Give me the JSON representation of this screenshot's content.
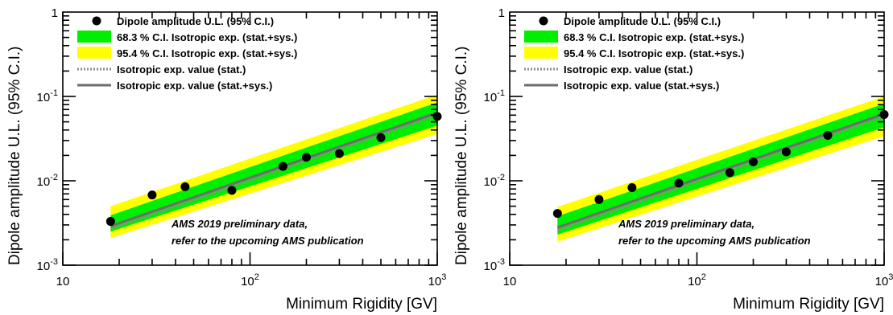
{
  "colors": {
    "band95": "#ffff00",
    "band68": "#00ee00",
    "line": "#6d6d6d",
    "marker": "#000000"
  },
  "chart_data": [
    {
      "type": "line",
      "xscale": "log",
      "yscale": "log",
      "xlim": [
        10,
        1000
      ],
      "ylim": [
        0.001,
        1
      ],
      "xlabel": "Minimum Rigidity [GV]",
      "ylabel": "Dipole amplitude U.L. (95% C.I.)",
      "xticklabels": [
        "10",
        "10^2",
        "10^3"
      ],
      "yticklabels": [
        "10^-3",
        "10^-2",
        "10^-1",
        "1"
      ],
      "legend_position": "top-left",
      "legend": [
        {
          "marker": "dot",
          "label": "Dipole amplitude U.L. (95% C.I.)"
        },
        {
          "marker": "band68",
          "label": "68.3 % C.I. Isotropic exp. (stat.+sys.)"
        },
        {
          "marker": "band95",
          "label": "95.4 % C.I. Isotropic exp. (stat.+sys.)"
        },
        {
          "marker": "dotted-line",
          "label": "Isotropic exp. value (stat.)"
        },
        {
          "marker": "solid-line",
          "label": "Isotropic exp. value (stat.+sys.)"
        }
      ],
      "annotation": [
        "AMS 2019 preliminary data,",
        "refer to the upcoming AMS publication"
      ],
      "upper_limits": {
        "x": [
          18,
          30,
          45,
          80,
          150,
          200,
          300,
          500,
          1000
        ],
        "y": [
          0.0033,
          0.0068,
          0.0085,
          0.0077,
          0.0148,
          0.019,
          0.021,
          0.0325,
          0.058
        ]
      },
      "x_grid": [
        18,
        1000
      ],
      "band95": {
        "lower": [
          0.0021,
          0.036
        ],
        "upper": [
          0.005,
          0.105
        ]
      },
      "band68": {
        "lower": [
          0.0025,
          0.045
        ],
        "upper": [
          0.0039,
          0.085
        ]
      },
      "expected_stat": [
        0.0027,
        0.06
      ],
      "expected_statsys": [
        0.0029,
        0.064
      ]
    },
    {
      "type": "line",
      "xscale": "log",
      "yscale": "log",
      "xlim": [
        10,
        1000
      ],
      "ylim": [
        0.001,
        1
      ],
      "xlabel": "Minimum Rigidity [GV]",
      "ylabel": "Dipole amplitude U.L. (95% C.I.)",
      "xticklabels": [
        "10",
        "10^2",
        "10^3"
      ],
      "yticklabels": [
        "10^-3",
        "10^-2",
        "10^-1",
        "1"
      ],
      "legend_position": "top-left",
      "legend": [
        {
          "marker": "dot",
          "label": "Dipole amplitude U.L. (95% C.I.)"
        },
        {
          "marker": "band68",
          "label": "68.3 % C.I. Isotropic exp. (stat.+sys.)"
        },
        {
          "marker": "band95",
          "label": "95.4 % C.I. Isotropic exp. (stat.+sys.)"
        },
        {
          "marker": "dotted-line",
          "label": "Isotropic exp. value (stat.)"
        },
        {
          "marker": "solid-line",
          "label": "Isotropic exp. value (stat.+sys.)"
        }
      ],
      "annotation": [
        "AMS 2019 preliminary data,",
        "refer to the upcoming AMS publication"
      ],
      "upper_limits": {
        "x": [
          18,
          30,
          45,
          80,
          150,
          200,
          300,
          500,
          1000
        ],
        "y": [
          0.0041,
          0.006,
          0.0083,
          0.0094,
          0.0125,
          0.0168,
          0.022,
          0.0345,
          0.061
        ]
      },
      "x_grid": [
        18,
        1000
      ],
      "band95": {
        "lower": [
          0.0019,
          0.034
        ],
        "upper": [
          0.0049,
          0.1
        ]
      },
      "band68": {
        "lower": [
          0.0023,
          0.043
        ],
        "upper": [
          0.0038,
          0.082
        ]
      },
      "expected_stat": [
        0.0026,
        0.058
      ],
      "expected_statsys": [
        0.0028,
        0.062
      ]
    }
  ]
}
